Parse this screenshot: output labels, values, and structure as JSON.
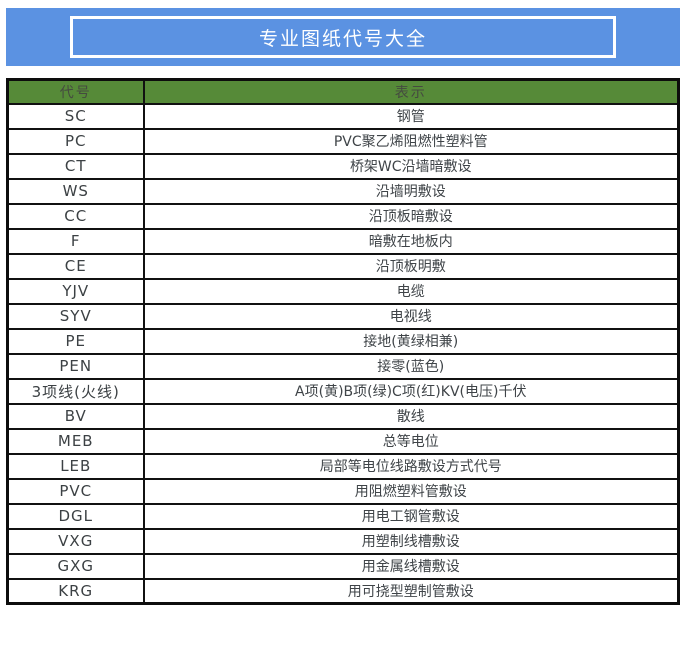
{
  "banner": {
    "title": "专业图纸代号大全",
    "bg_color": "#5b92e2",
    "border_color": "#ffffff",
    "text_color": "#ffffff"
  },
  "table": {
    "header": {
      "code_label": "代号",
      "meaning_label": "表示",
      "bg_color": "#568a38",
      "text_color": "#454a40"
    },
    "rows": [
      {
        "code": "SC",
        "meaning": "钢管"
      },
      {
        "code": "PC",
        "meaning": "PVC聚乙烯阻燃性塑料管"
      },
      {
        "code": "CT",
        "meaning": "桥架WC沿墙暗敷设"
      },
      {
        "code": "WS",
        "meaning": "沿墙明敷设"
      },
      {
        "code": "CC",
        "meaning": "沿顶板暗敷设"
      },
      {
        "code": "F",
        "meaning": "暗敷在地板内"
      },
      {
        "code": "CE",
        "meaning": "沿顶板明敷"
      },
      {
        "code": "YJV",
        "meaning": "电缆"
      },
      {
        "code": "SYV",
        "meaning": "电视线"
      },
      {
        "code": "PE",
        "meaning": "接地(黄绿相兼)"
      },
      {
        "code": "PEN",
        "meaning": "接零(蓝色)"
      },
      {
        "code": "3项线(火线)",
        "meaning": "A项(黄)B项(绿)C项(红)KV(电压)千伏"
      },
      {
        "code": "BV",
        "meaning": "散线"
      },
      {
        "code": "MEB",
        "meaning": "总等电位"
      },
      {
        "code": "LEB",
        "meaning": "局部等电位线路敷设方式代号"
      },
      {
        "code": "PVC",
        "meaning": "用阻燃塑料管敷设"
      },
      {
        "code": "DGL",
        "meaning": "用电工钢管敷设"
      },
      {
        "code": "VXG",
        "meaning": "用塑制线槽敷设"
      },
      {
        "code": "GXG",
        "meaning": "用金属线槽敷设"
      },
      {
        "code": "KRG",
        "meaning": "用可挠型塑制管敷设"
      }
    ]
  }
}
